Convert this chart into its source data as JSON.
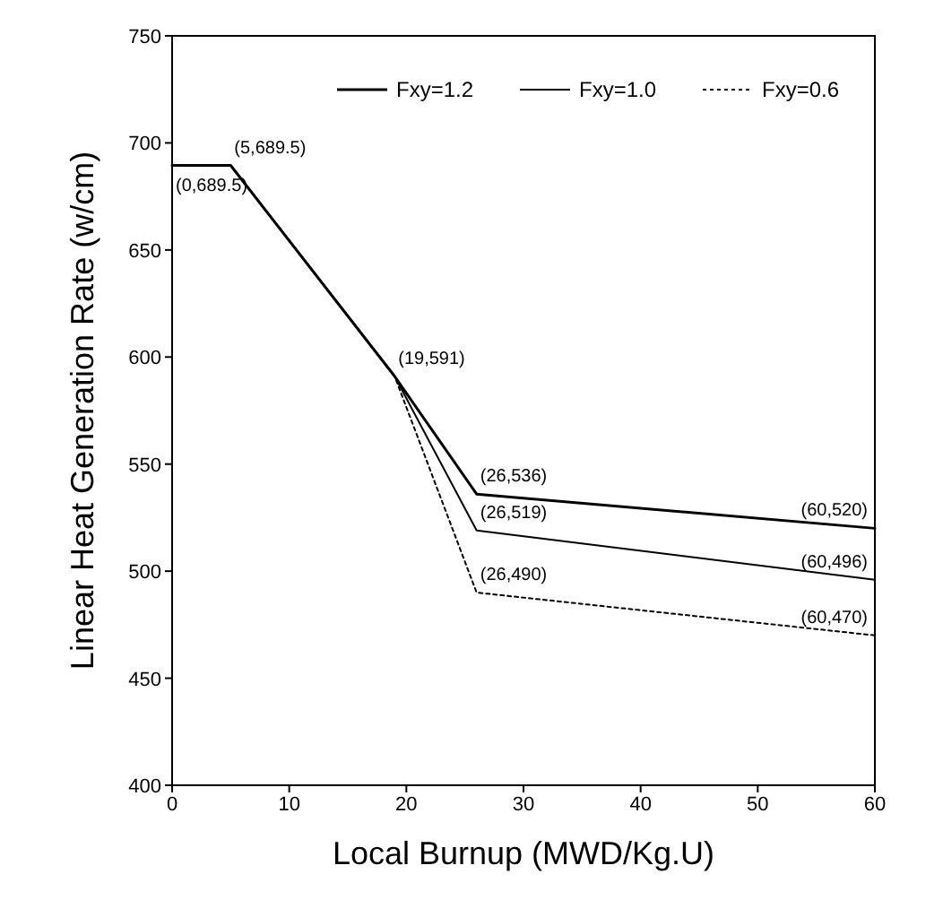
{
  "chart_data": {
    "type": "line",
    "xlabel": "Local Burnup (MWD/Kg.U)",
    "ylabel": "Linear Heat Generation Rate (w/cm)",
    "xlim": [
      0,
      60
    ],
    "xticks": [
      0,
      10,
      20,
      30,
      40,
      50,
      60
    ],
    "ylim": [
      400,
      750
    ],
    "yticks": [
      400,
      450,
      500,
      550,
      600,
      650,
      700,
      750
    ],
    "grid": false,
    "legend": "top right",
    "series": [
      {
        "name": "Fxy=1.2",
        "color": "#000000",
        "line_style": "solid",
        "x": [
          0,
          5,
          19,
          26,
          60
        ],
        "values": [
          689.5,
          689.5,
          591,
          536,
          520
        ]
      },
      {
        "name": "Fxy=1.0",
        "color": "#000000",
        "line_style": "solid",
        "x": [
          0,
          5,
          19,
          26,
          60
        ],
        "values": [
          689.5,
          689.5,
          591,
          519,
          496
        ]
      },
      {
        "name": "Fxy=0.6",
        "color": "#000000",
        "line_style": "dotted",
        "x": [
          0,
          5,
          19,
          26,
          60
        ],
        "values": [
          689.5,
          689.5,
          591,
          490,
          470
        ]
      }
    ],
    "annotations": [
      {
        "text": "(5,689.5)",
        "x": 5,
        "y": 689.5
      },
      {
        "text": "(0,689.5)",
        "x": 0,
        "y": 689.5
      },
      {
        "text": "(19,591)",
        "x": 19,
        "y": 591
      },
      {
        "text": "(26,536)",
        "x": 26,
        "y": 536
      },
      {
        "text": "(26,519)",
        "x": 26,
        "y": 519
      },
      {
        "text": "(26,490)",
        "x": 26,
        "y": 490
      },
      {
        "text": "(60,520)",
        "x": 60,
        "y": 520
      },
      {
        "text": "(60,496)",
        "x": 60,
        "y": 496
      },
      {
        "text": "(60,470)",
        "x": 60,
        "y": 470
      }
    ]
  }
}
